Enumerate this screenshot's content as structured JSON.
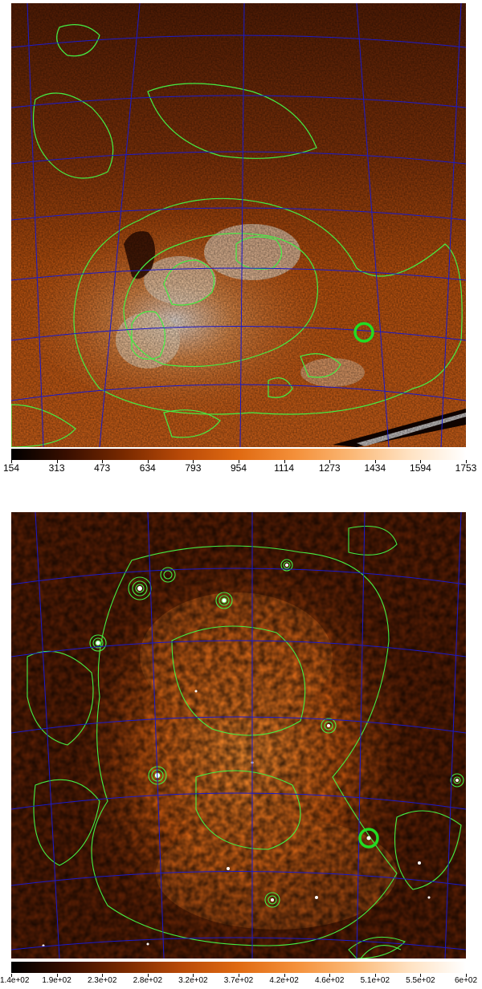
{
  "panels": [
    {
      "id": "top",
      "description": "X-ray intensity map with green contours and blue coordinate grid",
      "colorbar": {
        "colormap": [
          "#000000",
          "#3a0f00",
          "#7a2a00",
          "#b94a08",
          "#e06a12",
          "#f4903a",
          "#fbb876",
          "#ffe2c2",
          "#ffffff"
        ],
        "tick_labels": [
          "154",
          "313",
          "473",
          "634",
          "793",
          "954",
          "1114",
          "1273",
          "1434",
          "1594",
          "1753"
        ]
      },
      "overlay_colors": {
        "contour": "#44ee44",
        "grid": "#1a1acc",
        "marker": "#22dd22"
      }
    },
    {
      "id": "bottom",
      "description": "Smoothed X-ray intensity map with green contours and point sources",
      "colorbar": {
        "colormap": [
          "#000000",
          "#3a0f00",
          "#7a2a00",
          "#b94a08",
          "#e06a12",
          "#f4903a",
          "#fbb876",
          "#ffe2c2",
          "#ffffff"
        ],
        "tick_labels": [
          "1.4e+02",
          "1.9e+02",
          "2.3e+02",
          "2.8e+02",
          "3.2e+02",
          "3.7e+02",
          "4.2e+02",
          "4.6e+02",
          "5.1e+02",
          "5.5e+02",
          "6e+02"
        ]
      },
      "overlay_colors": {
        "contour": "#44ee44",
        "grid": "#1a1acc",
        "marker": "#22dd22"
      }
    }
  ]
}
